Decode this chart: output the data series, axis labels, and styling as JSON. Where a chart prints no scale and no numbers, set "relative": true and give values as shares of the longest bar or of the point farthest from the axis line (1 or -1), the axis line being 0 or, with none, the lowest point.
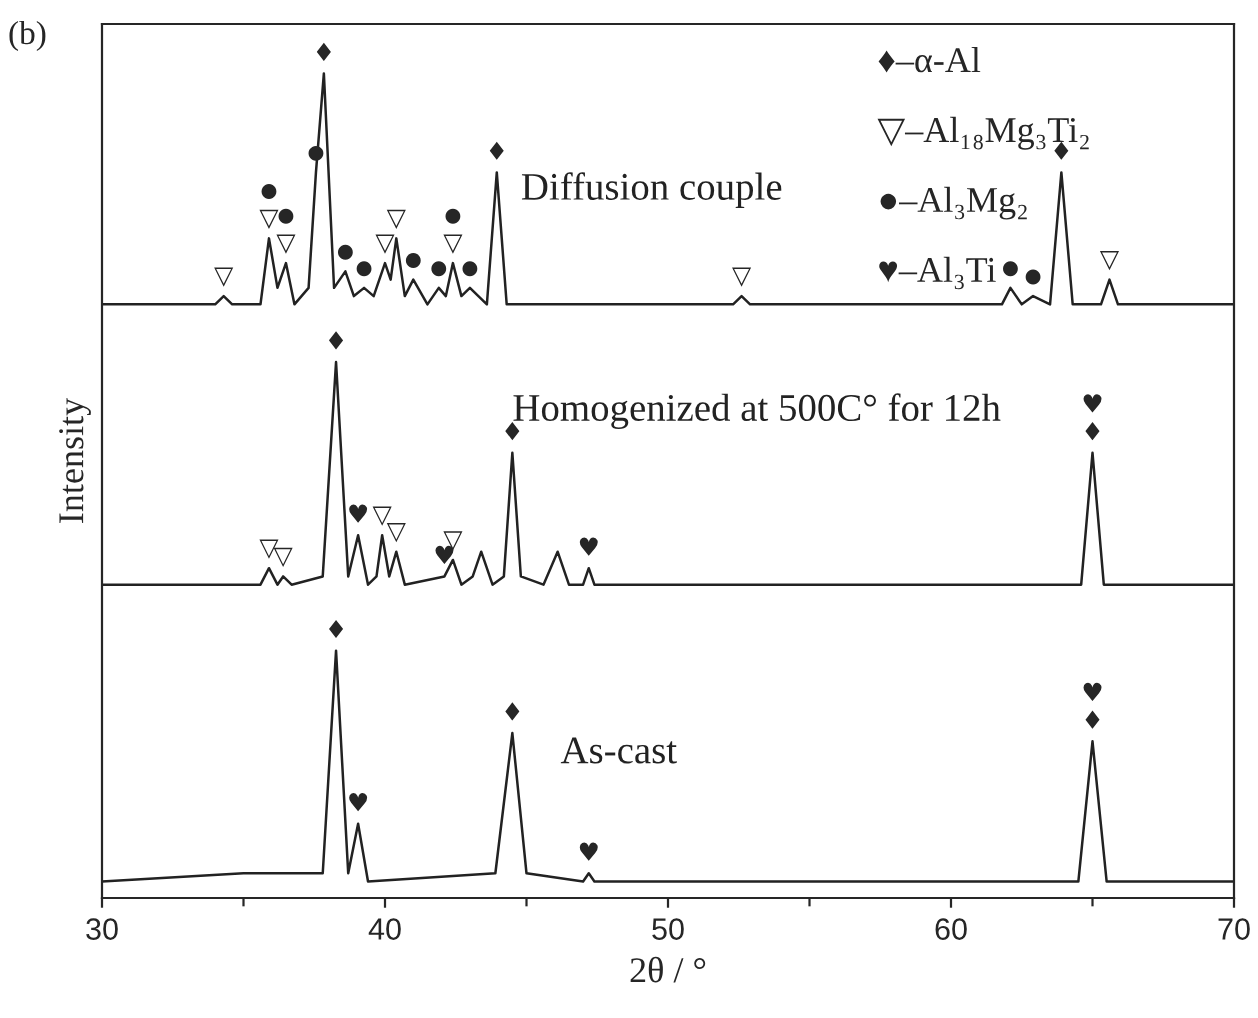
{
  "chart_data": {
    "type": "line",
    "relative": true,
    "title": "(b)",
    "xlabel": "2θ / °",
    "ylabel": "Intensity",
    "xlim": [
      30,
      70
    ],
    "xticks": [
      30,
      {
        "value": 35,
        "label": null
      },
      40,
      {
        "value": 45,
        "label": null
      },
      50,
      {
        "value": 55,
        "label": null
      },
      60,
      {
        "value": 65,
        "label": null
      },
      70
    ],
    "grid": false,
    "legend": false,
    "marker": "none",
    "line_style": "solid",
    "series": [
      {
        "name": "Diffusion couple",
        "color": "#222222",
        "x": [
          30,
          34.0,
          34.3,
          34.6,
          35.6,
          35.9,
          36.2,
          36.5,
          36.8,
          37.3,
          37.56,
          37.84,
          38.2,
          38.6,
          38.9,
          39.26,
          39.6,
          40.0,
          40.2,
          40.4,
          40.7,
          41.0,
          41.5,
          41.9,
          42.15,
          42.4,
          42.7,
          43.0,
          43.6,
          43.95,
          44.3,
          52.3,
          52.6,
          52.9,
          61.8,
          62.1,
          62.5,
          62.9,
          63.5,
          63.9,
          64.3,
          65.3,
          65.6,
          65.9,
          70
        ],
        "values": [
          0.72,
          0.72,
          0.73,
          0.72,
          0.72,
          0.8,
          0.74,
          0.77,
          0.72,
          0.74,
          0.88,
          1.0,
          0.74,
          0.76,
          0.73,
          0.74,
          0.73,
          0.77,
          0.75,
          0.8,
          0.73,
          0.75,
          0.72,
          0.74,
          0.73,
          0.77,
          0.73,
          0.74,
          0.72,
          0.88,
          0.72,
          0.72,
          0.73,
          0.72,
          0.72,
          0.74,
          0.72,
          0.73,
          0.72,
          0.88,
          0.72,
          0.72,
          0.75,
          0.72,
          0.72
        ]
      },
      {
        "name": "Homogenized at 500C° for 12h",
        "color": "#222222",
        "x": [
          30,
          35.6,
          35.9,
          36.2,
          36.4,
          36.7,
          37.8,
          38.27,
          38.7,
          39.05,
          39.4,
          39.7,
          39.9,
          40.15,
          40.4,
          40.7,
          42.1,
          42.4,
          42.7,
          43.1,
          43.4,
          43.8,
          44.2,
          44.5,
          44.8,
          45.6,
          46.1,
          46.5,
          47.0,
          47.2,
          47.4,
          64.6,
          65.0,
          65.4,
          70
        ],
        "values": [
          0.38,
          0.38,
          0.4,
          0.38,
          0.39,
          0.38,
          0.39,
          0.65,
          0.39,
          0.44,
          0.38,
          0.39,
          0.44,
          0.39,
          0.42,
          0.38,
          0.39,
          0.41,
          0.38,
          0.39,
          0.42,
          0.38,
          0.39,
          0.54,
          0.39,
          0.38,
          0.42,
          0.38,
          0.38,
          0.4,
          0.38,
          0.38,
          0.54,
          0.38,
          0.38
        ]
      },
      {
        "name": "As-cast",
        "color": "#222222",
        "x": [
          30,
          35.0,
          37.8,
          38.27,
          38.7,
          39.05,
          39.4,
          43.9,
          44.5,
          45.0,
          47.0,
          47.2,
          47.4,
          64.5,
          65.0,
          65.5,
          70
        ],
        "values": [
          0.02,
          0.03,
          0.03,
          0.3,
          0.03,
          0.09,
          0.02,
          0.03,
          0.2,
          0.03,
          0.02,
          0.03,
          0.02,
          0.02,
          0.19,
          0.02,
          0.02
        ]
      }
    ],
    "annotations": [
      "♦–α-Al",
      "▽–Al₁₈Mg₃Ti₂",
      "●–Al₃Mg₂",
      "♥–Al₃Ti",
      {
        "text": "▽",
        "x": 34.3,
        "y": 0.73
      },
      {
        "text": "▽",
        "x": 35.9,
        "y": 0.8
      },
      {
        "text": "●",
        "x": 35.9,
        "y": 0.8
      },
      {
        "text": "▽",
        "x": 36.5,
        "y": 0.77
      },
      {
        "text": "●",
        "x": 36.5,
        "y": 0.77
      },
      {
        "text": "●",
        "x": 37.56,
        "y": 0.88
      },
      {
        "text": "♦",
        "x": 37.84,
        "y": 1.0
      },
      {
        "text": "●",
        "x": 38.6,
        "y": 0.76
      },
      {
        "text": "●",
        "x": 39.26,
        "y": 0.74
      },
      {
        "text": "▽",
        "x": 40.0,
        "y": 0.77
      },
      {
        "text": "▽",
        "x": 40.4,
        "y": 0.8
      },
      {
        "text": "●",
        "x": 41.0,
        "y": 0.75
      },
      {
        "text": "●",
        "x": 41.9,
        "y": 0.74
      },
      {
        "text": "▽",
        "x": 42.4,
        "y": 0.77
      },
      {
        "text": "●",
        "x": 42.4,
        "y": 0.77
      },
      {
        "text": "●",
        "x": 43.0,
        "y": 0.74
      },
      {
        "text": "♦",
        "x": 43.95,
        "y": 0.88
      },
      {
        "text": "▽",
        "x": 52.6,
        "y": 0.73
      },
      {
        "text": "●",
        "x": 62.1,
        "y": 0.74
      },
      {
        "text": "●",
        "x": 62.9,
        "y": 0.73
      },
      {
        "text": "♦",
        "x": 63.9,
        "y": 0.88
      },
      {
        "text": "▽",
        "x": 65.6,
        "y": 0.75
      },
      {
        "text": "♦",
        "x": 38.27,
        "y": 0.65
      },
      {
        "text": "♥",
        "x": 39.05,
        "y": 0.44
      },
      {
        "text": "▽",
        "x": 35.9,
        "y": 0.4
      },
      {
        "text": "▽",
        "x": 36.4,
        "y": 0.39
      },
      {
        "text": "▽",
        "x": 39.9,
        "y": 0.44
      },
      {
        "text": "▽",
        "x": 40.4,
        "y": 0.42
      },
      {
        "text": "♥",
        "x": 42.1,
        "y": 0.39
      },
      {
        "text": "▽",
        "x": 42.4,
        "y": 0.41
      },
      {
        "text": "♥",
        "x": 47.2,
        "y": 0.4
      },
      {
        "text": "♦",
        "x": 44.5,
        "y": 0.54
      },
      {
        "text": "♦",
        "x": 65.0,
        "y": 0.54
      },
      {
        "text": "♥",
        "x": 65.0,
        "y": 0.54
      },
      {
        "text": "♦",
        "x": 38.27,
        "y": 0.3
      },
      {
        "text": "♥",
        "x": 39.05,
        "y": 0.09
      },
      {
        "text": "♦",
        "x": 44.5,
        "y": 0.2
      },
      {
        "text": "♥",
        "x": 47.2,
        "y": 0.03
      },
      {
        "text": "♦",
        "x": 65.0,
        "y": 0.19
      },
      {
        "text": "♥",
        "x": 65.0,
        "y": 0.19
      }
    ]
  }
}
